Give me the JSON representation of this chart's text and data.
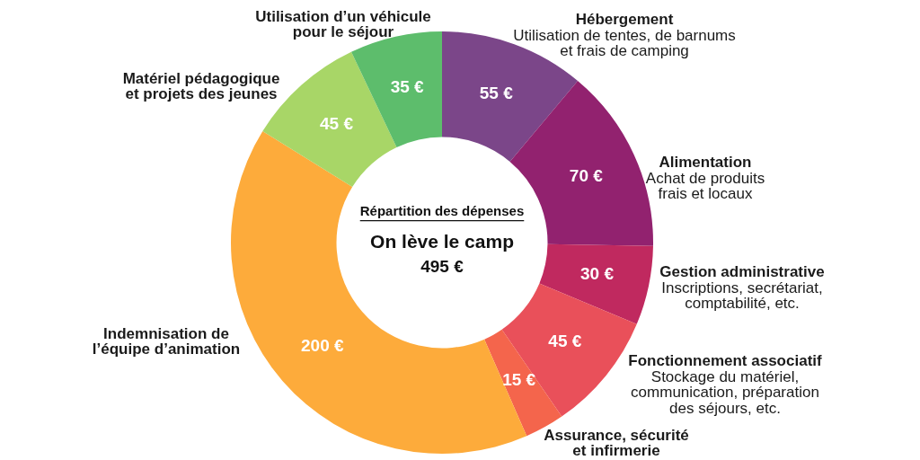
{
  "chart_data": {
    "type": "donut",
    "title": "On lève le camp",
    "subtitle": "Répartition des dépenses",
    "categories": [
      "Hébergement",
      "Alimentation",
      "Gestion administrative",
      "Fonctionnement associatif",
      "Assurance, sécurité\net infirmerie",
      "Indemnisation de\nl’équipe d’animation",
      "Matériel pédagogique\net projets des jeunes",
      "Utilisation d’un véhicule\npour le séjour"
    ],
    "values": [
      55,
      70,
      30,
      45,
      15,
      200,
      45,
      35
    ],
    "colors": [
      "#7b4689",
      "#92226f",
      "#c0295f",
      "#e9505a",
      "#f4654c",
      "#fdab3b",
      "#a8d667",
      "#5dbd6c"
    ],
    "value_labels": [
      "55 €",
      "70 €",
      "30 €",
      "45 €",
      "15 €",
      "200 €",
      "45 €",
      "35 €"
    ],
    "annotations": [
      "495 €",
      {
        "text": "Utilisation de tentes, de barnums\net frais de camping",
        "x": "Hébergement"
      },
      {
        "text": "Achat de produits\nfrais et locaux",
        "x": "Alimentation"
      },
      {
        "text": "Inscriptions, secrétariat,\ncomptabilité, etc.",
        "x": "Gestion administrative"
      },
      {
        "text": "Stockage du matériel,\ncommunication, préparation\ndes séjours, etc.",
        "x": "Fonctionnement associatif"
      }
    ]
  }
}
